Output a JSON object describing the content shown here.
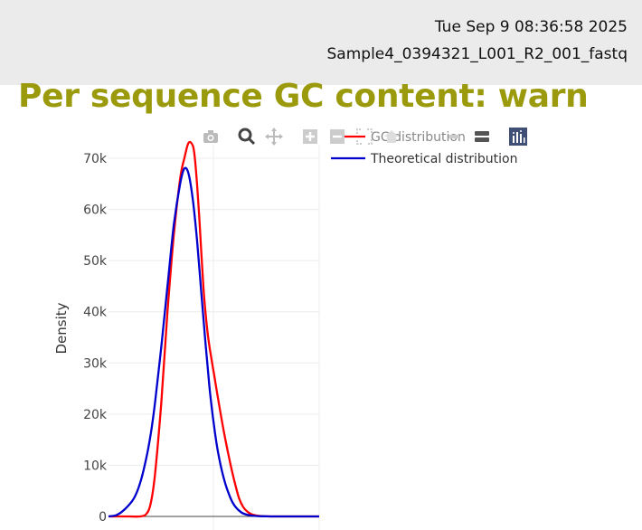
{
  "header": {
    "date": "Tue Sep 9 08:36:58 2025",
    "filename": "Sample4_0394321_L001_R2_001_fastq"
  },
  "section": {
    "title": "Per sequence GC content: warn",
    "title_color": "#9a9a0c"
  },
  "modebar": {
    "icons": [
      "camera-icon",
      "zoom-icon",
      "pan-icon",
      "zoom-in-icon",
      "zoom-out-icon",
      "autoscale-icon",
      "reset-axes-icon",
      "spike-lines-icon",
      "hover-compare-icon",
      "plotly-logo-icon"
    ]
  },
  "chart_data": {
    "type": "line",
    "ylabel": "Density",
    "xlabel": "",
    "ylim": [
      0,
      75000
    ],
    "yticks": [
      0,
      10000,
      20000,
      30000,
      40000,
      50000,
      60000,
      70000
    ],
    "ytick_labels": [
      "0",
      "10k",
      "20k",
      "30k",
      "40k",
      "50k",
      "60k",
      "70k"
    ],
    "xlim": [
      0,
      100
    ],
    "grid": true,
    "legend_position": "top-right",
    "series": [
      {
        "name": "GC distribution",
        "color": "#ff0000",
        "x": [
          0,
          5,
          10,
          15,
          18,
          20,
          22,
          25,
          28,
          31,
          34,
          36,
          38,
          40,
          41,
          42,
          43,
          44,
          45,
          46,
          47,
          48,
          50,
          52,
          55,
          58,
          60,
          62,
          64,
          66,
          68,
          70,
          72,
          75,
          80,
          90,
          100
        ],
        "y": [
          0,
          0,
          0,
          0,
          500,
          2500,
          8000,
          22000,
          40000,
          55000,
          66000,
          70000,
          73000,
          72500,
          70000,
          65000,
          59000,
          52000,
          45000,
          40000,
          36000,
          33000,
          28000,
          23000,
          16000,
          10000,
          6500,
          3500,
          1800,
          900,
          400,
          200,
          80,
          20,
          5,
          0,
          0
        ]
      },
      {
        "name": "Theoretical distribution",
        "color": "#0000cc",
        "x": [
          0,
          4,
          8,
          12,
          15,
          18,
          20,
          22,
          25,
          28,
          31,
          34,
          36,
          38,
          40,
          42,
          44,
          46,
          48,
          50,
          52,
          55,
          58,
          60,
          63,
          66,
          70,
          75,
          80,
          90,
          100
        ],
        "y": [
          0,
          300,
          1500,
          3500,
          6500,
          11500,
          16000,
          22000,
          33000,
          45000,
          57000,
          65000,
          68000,
          67000,
          62000,
          54000,
          44000,
          34000,
          25000,
          18000,
          12500,
          7000,
          3500,
          2000,
          800,
          300,
          80,
          20,
          5,
          0,
          0
        ]
      }
    ]
  }
}
